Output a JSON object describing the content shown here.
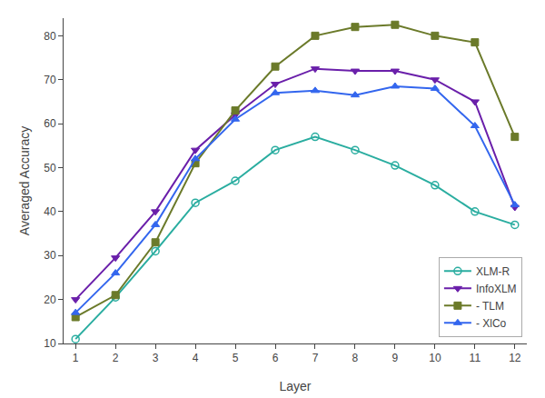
{
  "chart_data": {
    "type": "line",
    "xlabel": "Layer",
    "ylabel": "Averaged Accuracy",
    "x": [
      1,
      2,
      3,
      4,
      5,
      6,
      7,
      8,
      9,
      10,
      11,
      12
    ],
    "series": [
      {
        "name": "XLM-R",
        "color": "#2aada0",
        "marker": "circle-open",
        "values": [
          11,
          20.5,
          31,
          42,
          47,
          54,
          57,
          54,
          50.5,
          46,
          40,
          37
        ]
      },
      {
        "name": "InfoXLM",
        "color": "#6a1faa",
        "marker": "triangle-down",
        "values": [
          20,
          29.5,
          40,
          54,
          62,
          69,
          72.5,
          72,
          72,
          70,
          65,
          41
        ]
      },
      {
        "name": "- TLM",
        "color": "#6b7a2a",
        "marker": "square",
        "values": [
          16,
          21,
          33,
          51,
          63,
          73,
          80,
          82,
          82.5,
          80,
          78.5,
          57
        ]
      },
      {
        "name": "- XlCo",
        "color": "#3366ee",
        "marker": "triangle-up",
        "values": [
          17,
          26,
          37,
          52,
          61,
          67,
          67.5,
          66.5,
          68.5,
          68,
          59.5,
          41.5
        ]
      }
    ],
    "xlim": [
      0.7,
      12.3
    ],
    "ylim": [
      10,
      84
    ],
    "xticks": [
      1,
      2,
      3,
      4,
      5,
      6,
      7,
      8,
      9,
      10,
      11,
      12
    ],
    "yticks": [
      10,
      20,
      30,
      40,
      50,
      60,
      70,
      80
    ],
    "grid": false,
    "legend": "lower right"
  }
}
